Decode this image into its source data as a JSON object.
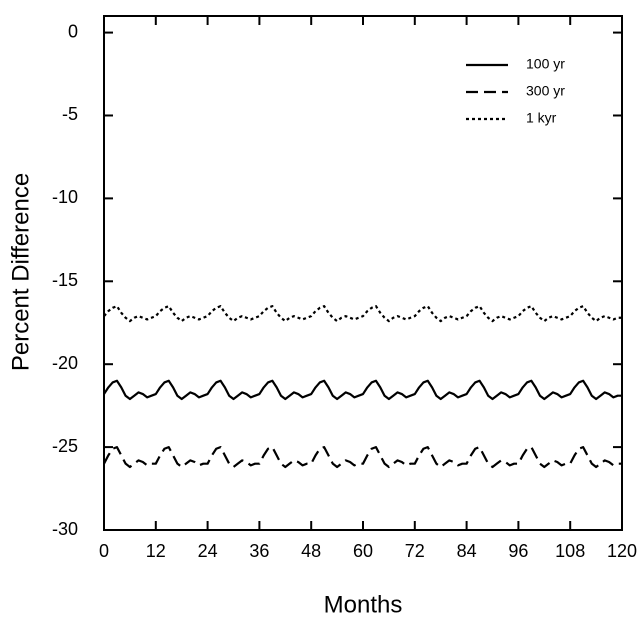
{
  "chart_data": {
    "type": "line",
    "xlabel": "Months",
    "ylabel": "Percent Difference",
    "x": [
      0,
      1,
      2,
      3,
      4,
      5,
      6,
      7,
      8,
      9,
      10,
      11,
      12,
      13,
      14,
      15,
      16,
      17,
      18,
      19,
      20,
      21,
      22,
      23,
      24,
      25,
      26,
      27,
      28,
      29,
      30,
      31,
      32,
      33,
      34,
      35,
      36,
      37,
      38,
      39,
      40,
      41,
      42,
      43,
      44,
      45,
      46,
      47,
      48,
      49,
      50,
      51,
      52,
      53,
      54,
      55,
      56,
      57,
      58,
      59,
      60,
      61,
      62,
      63,
      64,
      65,
      66,
      67,
      68,
      69,
      70,
      71,
      72,
      73,
      74,
      75,
      76,
      77,
      78,
      79,
      80,
      81,
      82,
      83,
      84,
      85,
      86,
      87,
      88,
      89,
      90,
      91,
      92,
      93,
      94,
      95,
      96,
      97,
      98,
      99,
      100,
      101,
      102,
      103,
      104,
      105,
      106,
      107,
      108,
      109,
      110,
      111,
      112,
      113,
      114,
      115,
      116,
      117,
      118,
      119,
      120
    ],
    "series": [
      {
        "name": "100 yr",
        "color": "#000000",
        "dash": "solid",
        "values": [
          -21.8,
          -21.4,
          -21.1,
          -21.0,
          -21.4,
          -21.9,
          -22.1,
          -21.9,
          -21.7,
          -21.8,
          -22.0,
          -21.9,
          -21.8,
          -21.4,
          -21.1,
          -21.0,
          -21.4,
          -21.9,
          -22.1,
          -21.9,
          -21.7,
          -21.8,
          -22.0,
          -21.9,
          -21.8,
          -21.4,
          -21.1,
          -21.0,
          -21.4,
          -21.9,
          -22.1,
          -21.9,
          -21.7,
          -21.8,
          -22.0,
          -21.9,
          -21.8,
          -21.4,
          -21.1,
          -21.0,
          -21.4,
          -21.9,
          -22.1,
          -21.9,
          -21.7,
          -21.8,
          -22.0,
          -21.9,
          -21.8,
          -21.4,
          -21.1,
          -21.0,
          -21.4,
          -21.9,
          -22.1,
          -21.9,
          -21.7,
          -21.8,
          -22.0,
          -21.9,
          -21.8,
          -21.4,
          -21.1,
          -21.0,
          -21.4,
          -21.9,
          -22.1,
          -21.9,
          -21.7,
          -21.8,
          -22.0,
          -21.9,
          -21.8,
          -21.4,
          -21.1,
          -21.0,
          -21.4,
          -21.9,
          -22.1,
          -21.9,
          -21.7,
          -21.8,
          -22.0,
          -21.9,
          -21.8,
          -21.4,
          -21.1,
          -21.0,
          -21.4,
          -21.9,
          -22.1,
          -21.9,
          -21.7,
          -21.8,
          -22.0,
          -21.9,
          -21.8,
          -21.4,
          -21.1,
          -21.0,
          -21.4,
          -21.9,
          -22.1,
          -21.9,
          -21.7,
          -21.8,
          -22.0,
          -21.9,
          -21.8,
          -21.4,
          -21.1,
          -21.0,
          -21.4,
          -21.9,
          -22.1,
          -21.9,
          -21.7,
          -21.8,
          -22.0,
          -21.9,
          -21.9
        ]
      },
      {
        "name": "300 yr",
        "color": "#000000",
        "dash": "dashed",
        "values": [
          -26.0,
          -25.5,
          -25.1,
          -25.0,
          -25.5,
          -26.0,
          -26.2,
          -26.0,
          -25.8,
          -25.9,
          -26.1,
          -26.0,
          -26.0,
          -25.5,
          -25.1,
          -25.0,
          -25.5,
          -26.0,
          -26.2,
          -26.0,
          -25.8,
          -25.9,
          -26.1,
          -26.0,
          -26.0,
          -25.5,
          -25.1,
          -25.0,
          -25.5,
          -26.0,
          -26.2,
          -26.0,
          -25.8,
          -25.9,
          -26.1,
          -26.0,
          -26.0,
          -25.5,
          -25.1,
          -25.0,
          -25.5,
          -26.0,
          -26.2,
          -26.0,
          -25.8,
          -25.9,
          -26.1,
          -26.0,
          -26.0,
          -25.5,
          -25.1,
          -25.0,
          -25.5,
          -26.0,
          -26.2,
          -26.0,
          -25.8,
          -25.9,
          -26.1,
          -26.0,
          -26.0,
          -25.5,
          -25.1,
          -25.0,
          -25.5,
          -26.0,
          -26.2,
          -26.0,
          -25.8,
          -25.9,
          -26.1,
          -26.0,
          -26.0,
          -25.5,
          -25.1,
          -25.0,
          -25.5,
          -26.0,
          -26.2,
          -26.0,
          -25.8,
          -25.9,
          -26.1,
          -26.0,
          -26.0,
          -25.5,
          -25.1,
          -25.0,
          -25.5,
          -26.0,
          -26.2,
          -26.0,
          -25.8,
          -25.9,
          -26.1,
          -26.0,
          -26.0,
          -25.5,
          -25.1,
          -25.0,
          -25.5,
          -26.0,
          -26.2,
          -26.0,
          -25.8,
          -25.9,
          -26.1,
          -26.0,
          -26.0,
          -25.5,
          -25.1,
          -25.0,
          -25.5,
          -26.0,
          -26.2,
          -26.0,
          -25.8,
          -25.9,
          -26.1,
          -26.0,
          -26.0
        ]
      },
      {
        "name": "1 kyr",
        "color": "#000000",
        "dash": "dotted",
        "values": [
          -17.1,
          -16.8,
          -16.6,
          -16.5,
          -16.9,
          -17.2,
          -17.4,
          -17.2,
          -17.1,
          -17.2,
          -17.3,
          -17.2,
          -17.1,
          -16.8,
          -16.6,
          -16.5,
          -16.9,
          -17.2,
          -17.4,
          -17.2,
          -17.1,
          -17.2,
          -17.3,
          -17.2,
          -17.1,
          -16.8,
          -16.6,
          -16.5,
          -16.9,
          -17.2,
          -17.4,
          -17.2,
          -17.1,
          -17.2,
          -17.3,
          -17.2,
          -17.1,
          -16.8,
          -16.6,
          -16.5,
          -16.9,
          -17.2,
          -17.4,
          -17.2,
          -17.1,
          -17.2,
          -17.3,
          -17.2,
          -17.1,
          -16.8,
          -16.6,
          -16.5,
          -16.9,
          -17.2,
          -17.4,
          -17.2,
          -17.1,
          -17.2,
          -17.3,
          -17.2,
          -17.1,
          -16.8,
          -16.6,
          -16.5,
          -16.9,
          -17.2,
          -17.4,
          -17.2,
          -17.1,
          -17.2,
          -17.3,
          -17.2,
          -17.1,
          -16.8,
          -16.6,
          -16.5,
          -16.9,
          -17.2,
          -17.4,
          -17.2,
          -17.1,
          -17.2,
          -17.3,
          -17.2,
          -17.1,
          -16.8,
          -16.6,
          -16.5,
          -16.9,
          -17.2,
          -17.4,
          -17.2,
          -17.1,
          -17.2,
          -17.3,
          -17.2,
          -17.1,
          -16.8,
          -16.6,
          -16.5,
          -16.9,
          -17.2,
          -17.4,
          -17.2,
          -17.1,
          -17.2,
          -17.3,
          -17.2,
          -17.1,
          -16.8,
          -16.6,
          -16.5,
          -16.9,
          -17.2,
          -17.4,
          -17.2,
          -17.1,
          -17.2,
          -17.3,
          -17.2,
          -17.2
        ]
      }
    ],
    "xlim": [
      0,
      120
    ],
    "xticks": [
      0,
      12,
      24,
      36,
      48,
      60,
      72,
      84,
      96,
      108,
      120
    ],
    "ylim": [
      -30,
      1
    ],
    "yticks": [
      -30,
      -25,
      -20,
      -15,
      -10,
      -5,
      0
    ],
    "legend": "upper right",
    "grid": false
  }
}
